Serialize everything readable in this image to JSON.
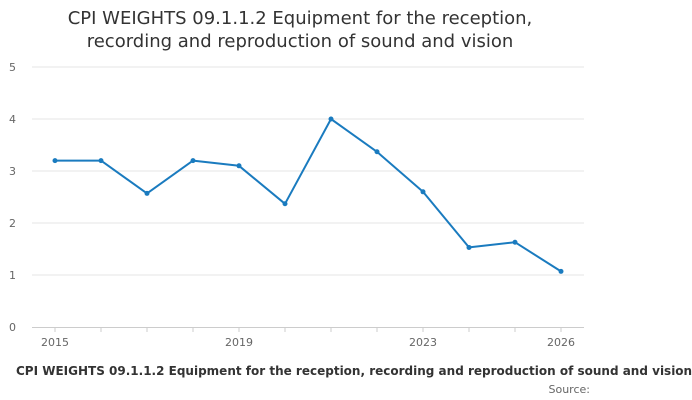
{
  "chart_data": {
    "type": "line",
    "title_lines": [
      "CPI WEIGHTS 09.1.1.2 Equipment for the reception,",
      "recording and reproduction of sound and vision"
    ],
    "x": [
      2015,
      2016,
      2017,
      2018,
      2019,
      2020,
      2021,
      2022,
      2023,
      2024,
      2025,
      2026
    ],
    "x_tick_labels": [
      "2015",
      "2019",
      "2023",
      "2026"
    ],
    "y_ticks": [
      0,
      1,
      2,
      3,
      4,
      5
    ],
    "ylim": [
      0,
      5
    ],
    "grid": true,
    "series": [
      {
        "name": "CPI WEIGHTS 09.1.1.2 Equipment for the reception, recording and reproduction of sound and vision",
        "color": "#1a7bbf",
        "values": [
          3.2,
          3.2,
          2.57,
          3.2,
          3.1,
          2.37,
          4.0,
          3.37,
          2.6,
          1.53,
          1.63,
          1.07
        ]
      }
    ],
    "legend_position": "bottom",
    "source_label": "Source:"
  }
}
